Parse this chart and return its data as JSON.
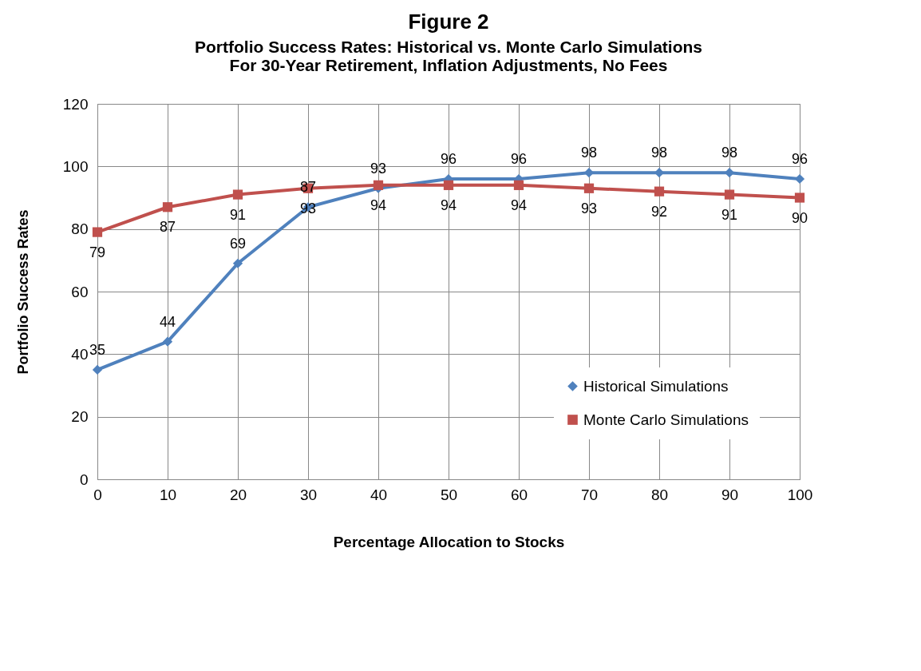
{
  "chart_data": {
    "type": "line",
    "title": "Figure 2",
    "subtitle": [
      "Portfolio Success Rates: Historical vs. Monte Carlo Simulations",
      "For 30-Year Retirement, Inflation Adjustments, No Fees"
    ],
    "xlabel": "Percentage Allocation to Stocks",
    "ylabel": "Portfolio Success Rates",
    "x": [
      0,
      10,
      20,
      30,
      40,
      50,
      60,
      70,
      80,
      90,
      100
    ],
    "series": [
      {
        "name": "Historical Simulations",
        "color": "#4f81bd",
        "marker": "diamond",
        "values": [
          35,
          44,
          69,
          87,
          93,
          96,
          96,
          98,
          98,
          98,
          96
        ]
      },
      {
        "name": "Monte Carlo Simulations",
        "color": "#c0504d",
        "marker": "square",
        "values": [
          79,
          87,
          91,
          93,
          94,
          94,
          94,
          93,
          92,
          91,
          90
        ]
      }
    ],
    "xlim": [
      0,
      100
    ],
    "xticks": [
      0,
      10,
      20,
      30,
      40,
      50,
      60,
      70,
      80,
      90,
      100
    ],
    "ylim": [
      0,
      120
    ],
    "yticks": [
      0,
      20,
      40,
      60,
      80,
      100,
      120
    ],
    "grid": true,
    "legend": "bottom right",
    "data_labels": true,
    "line_style": "solid"
  }
}
